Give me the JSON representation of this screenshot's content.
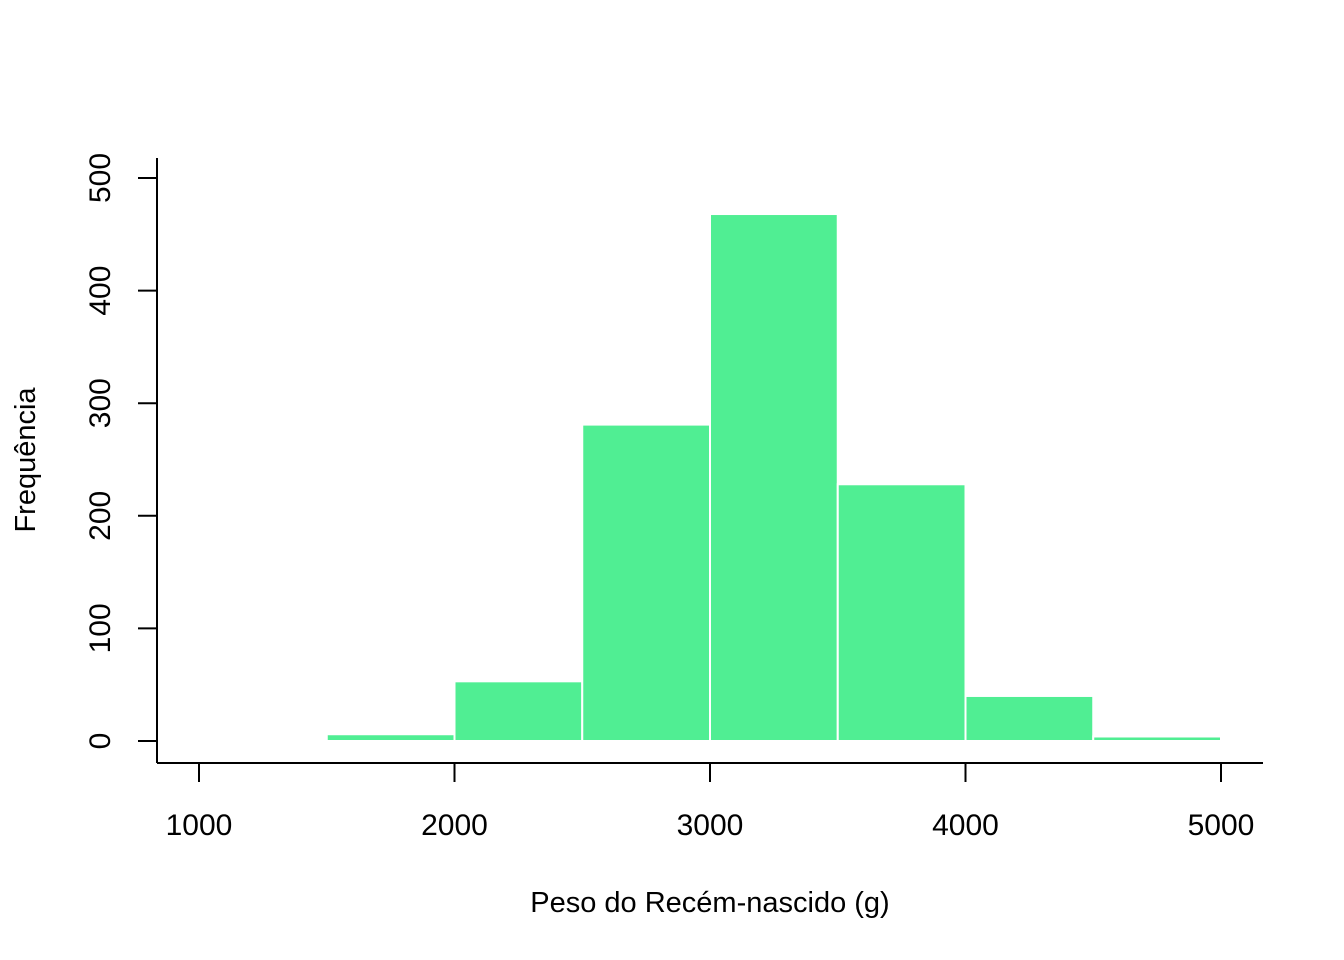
{
  "chart_data": {
    "type": "bar",
    "title": "",
    "xlabel": "Peso do Recém-nascido (g)",
    "ylabel": "Frequência",
    "bin_edges": [
      1500,
      2000,
      2500,
      3000,
      3500,
      4000,
      4500,
      5000
    ],
    "values": [
      6,
      53,
      281,
      468,
      228,
      40,
      4
    ],
    "xlim": [
      1000,
      5000
    ],
    "ylim": [
      0,
      500
    ],
    "x_ticks": [
      1000,
      2000,
      3000,
      4000,
      5000
    ],
    "x_tick_labels": [
      "1000",
      "2000",
      "3000",
      "4000",
      "5000"
    ],
    "y_ticks": [
      0,
      100,
      200,
      300,
      400,
      500
    ],
    "y_tick_labels": [
      "0",
      "100",
      "200",
      "300",
      "400",
      "500"
    ],
    "grid": false,
    "bar_color": "#50EE93"
  }
}
